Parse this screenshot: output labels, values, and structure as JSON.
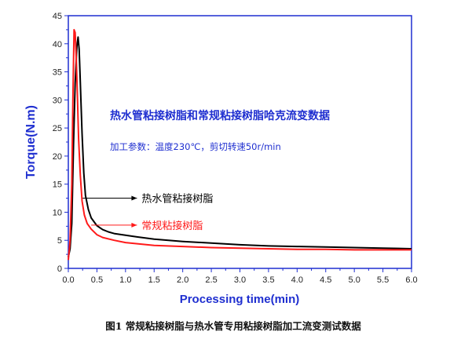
{
  "chart_data": {
    "type": "line",
    "xlabel": "Processing time(min)",
    "ylabel": "Torque(N.m)",
    "xlim": [
      0,
      6.0
    ],
    "ylim": [
      0,
      45
    ],
    "x_ticks": [
      "0.0",
      "0.5",
      "1.0",
      "1.5",
      "2.0",
      "2.5",
      "3.0",
      "3.5",
      "4.0",
      "4.5",
      "5.0",
      "5.5",
      "6.0"
    ],
    "y_ticks": [
      "0",
      "5",
      "10",
      "15",
      "20",
      "25",
      "30",
      "35",
      "40",
      "45"
    ],
    "inner_title": "热水管粘接树脂和常规粘接树脂哈克流变数据",
    "conditions": "加工参数：温度230℃，剪切转速50r/min",
    "caption": "图1 常规粘接树脂与热水管专用粘接树脂加工流变测试数据",
    "grid": false,
    "series": [
      {
        "name": "热水管粘接树脂",
        "color": "#000000",
        "x": [
          0.0,
          0.03,
          0.06,
          0.09,
          0.12,
          0.15,
          0.17,
          0.19,
          0.21,
          0.24,
          0.27,
          0.3,
          0.35,
          0.4,
          0.5,
          0.6,
          0.7,
          0.8,
          1.0,
          1.2,
          1.5,
          2.0,
          2.5,
          3.0,
          3.5,
          4.0,
          4.5,
          5.0,
          5.5,
          6.0
        ],
        "y": [
          2.0,
          3.5,
          8.0,
          22.0,
          33.0,
          39.5,
          41.2,
          39.0,
          33.0,
          24.0,
          17.0,
          13.0,
          10.5,
          9.0,
          7.6,
          6.9,
          6.5,
          6.2,
          5.9,
          5.6,
          5.2,
          4.8,
          4.5,
          4.2,
          4.0,
          3.9,
          3.8,
          3.7,
          3.6,
          3.5
        ]
      },
      {
        "name": "常规粘接树脂",
        "color": "#ff1a1a",
        "x": [
          0.0,
          0.03,
          0.06,
          0.08,
          0.1,
          0.12,
          0.14,
          0.16,
          0.18,
          0.21,
          0.24,
          0.28,
          0.33,
          0.4,
          0.5,
          0.6,
          0.8,
          1.0,
          1.5,
          2.0,
          2.5,
          3.0,
          3.5,
          4.0,
          4.5,
          5.0,
          5.5,
          6.0
        ],
        "y": [
          1.5,
          5.0,
          15.0,
          30.0,
          42.5,
          42.0,
          37.0,
          30.0,
          23.0,
          16.5,
          12.0,
          9.5,
          8.0,
          7.0,
          6.0,
          5.5,
          5.0,
          4.6,
          4.1,
          3.9,
          3.7,
          3.6,
          3.5,
          3.4,
          3.4,
          3.3,
          3.3,
          3.3
        ]
      }
    ],
    "annotations": [
      {
        "text": "热水管粘接树脂",
        "color": "#000000",
        "arrow_from": [
          1.2,
          12.5
        ],
        "arrow_to": [
          0.25,
          12.5
        ]
      },
      {
        "text": "常规粘接树脂",
        "color": "#ff1a1a",
        "arrow_from": [
          1.2,
          7.7
        ],
        "arrow_to": [
          0.4,
          7.7
        ]
      }
    ],
    "colors": {
      "frame": "#1f2fd0",
      "text_blue": "#1f2fd0",
      "black": "#000000",
      "red": "#ff1a1a"
    }
  }
}
